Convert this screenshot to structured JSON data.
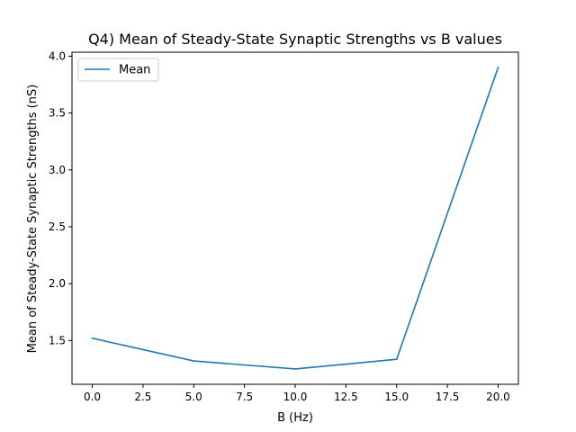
{
  "chart_data": {
    "type": "line",
    "title": "Q4) Mean of Steady-State Synaptic Strengths vs B values",
    "xlabel": "B (Hz)",
    "ylabel": "Mean of Steady-State Synaptic Strengths (nS)",
    "x": [
      0,
      5,
      10,
      15,
      20
    ],
    "series": [
      {
        "name": "Mean",
        "values": [
          1.52,
          1.32,
          1.25,
          1.335,
          3.9
        ],
        "color": "#1f77b4"
      }
    ],
    "xlim": [
      -1,
      21
    ],
    "ylim": [
      1.115,
      4.035
    ],
    "xticks": [
      0.0,
      2.5,
      5.0,
      7.5,
      10.0,
      12.5,
      15.0,
      17.5,
      20.0
    ],
    "xtick_labels": [
      "0.0",
      "2.5",
      "5.0",
      "7.5",
      "10.0",
      "12.5",
      "15.0",
      "17.5",
      "20.0"
    ],
    "yticks": [
      1.5,
      2.0,
      2.5,
      3.0,
      3.5,
      4.0
    ],
    "ytick_labels": [
      "1.5",
      "2.0",
      "2.5",
      "3.0",
      "3.5",
      "4.0"
    ],
    "grid": false,
    "legend_position": "upper-left"
  }
}
